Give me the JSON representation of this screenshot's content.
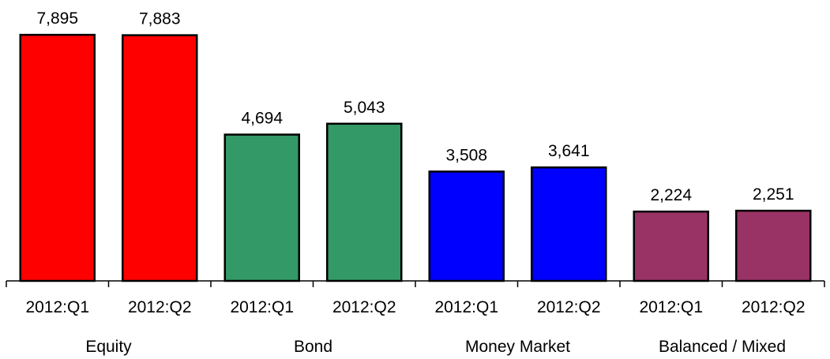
{
  "chart_data": {
    "type": "bar",
    "title": "",
    "xlabel": "",
    "ylabel": "",
    "ylim": [
      0,
      8000
    ],
    "grid": false,
    "legend": "none",
    "groups": [
      {
        "name": "Equity",
        "color": "#ff0000",
        "bars": [
          {
            "label": "2012:Q1",
            "value": 7895,
            "display": "7,895"
          },
          {
            "label": "2012:Q2",
            "value": 7883,
            "display": "7,883"
          }
        ]
      },
      {
        "name": "Bond",
        "color": "#339966",
        "bars": [
          {
            "label": "2012:Q1",
            "value": 4694,
            "display": "4,694"
          },
          {
            "label": "2012:Q2",
            "value": 5043,
            "display": "5,043"
          }
        ]
      },
      {
        "name": "Money Market",
        "color": "#0000ff",
        "bars": [
          {
            "label": "2012:Q1",
            "value": 3508,
            "display": "3,508"
          },
          {
            "label": "2012:Q2",
            "value": 3641,
            "display": "3,641"
          }
        ]
      },
      {
        "name": "Balanced / Mixed",
        "color": "#993366",
        "bars": [
          {
            "label": "2012:Q1",
            "value": 2224,
            "display": "2,224"
          },
          {
            "label": "2012:Q2",
            "value": 2251,
            "display": "2,251"
          }
        ]
      }
    ]
  }
}
